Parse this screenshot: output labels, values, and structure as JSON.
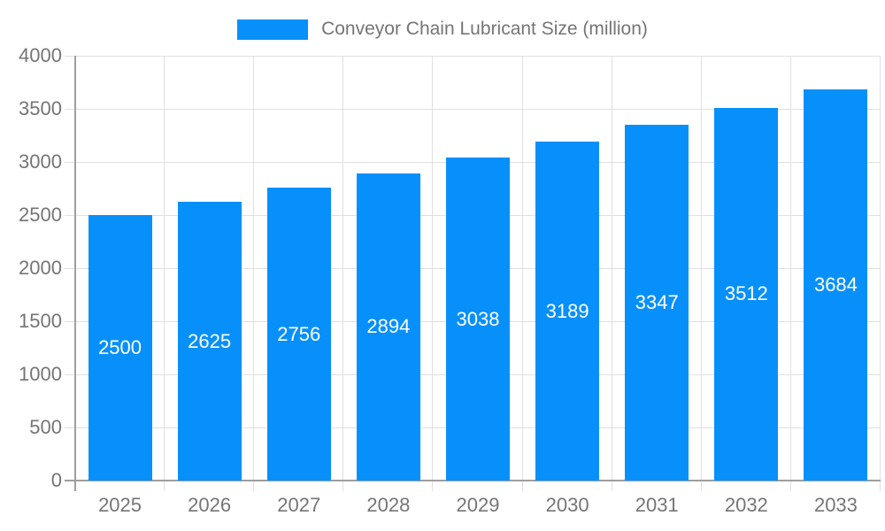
{
  "chart_data": {
    "type": "bar",
    "title": "Conveyor Chain Lubricant Size (million)",
    "categories": [
      "2025",
      "2026",
      "2027",
      "2028",
      "2029",
      "2030",
      "2031",
      "2032",
      "2033"
    ],
    "values": [
      2500,
      2625,
      2756,
      2894,
      3038,
      3189,
      3347,
      3512,
      3684
    ],
    "xlabel": "",
    "ylabel": "",
    "ylim": [
      0,
      4000
    ],
    "ytick_step": 500,
    "grid": true,
    "legend_position": "top",
    "value_labels": "inside-middle"
  },
  "legend": {
    "label": "Conveyor Chain Lubricant Size (million)"
  },
  "colors": {
    "bar_fill": "#0890fa",
    "bar_value_text": "#ffffff",
    "gridline": "#e0e0e0",
    "axis_line": "#9e9e9e",
    "tick_text": "#757575"
  }
}
